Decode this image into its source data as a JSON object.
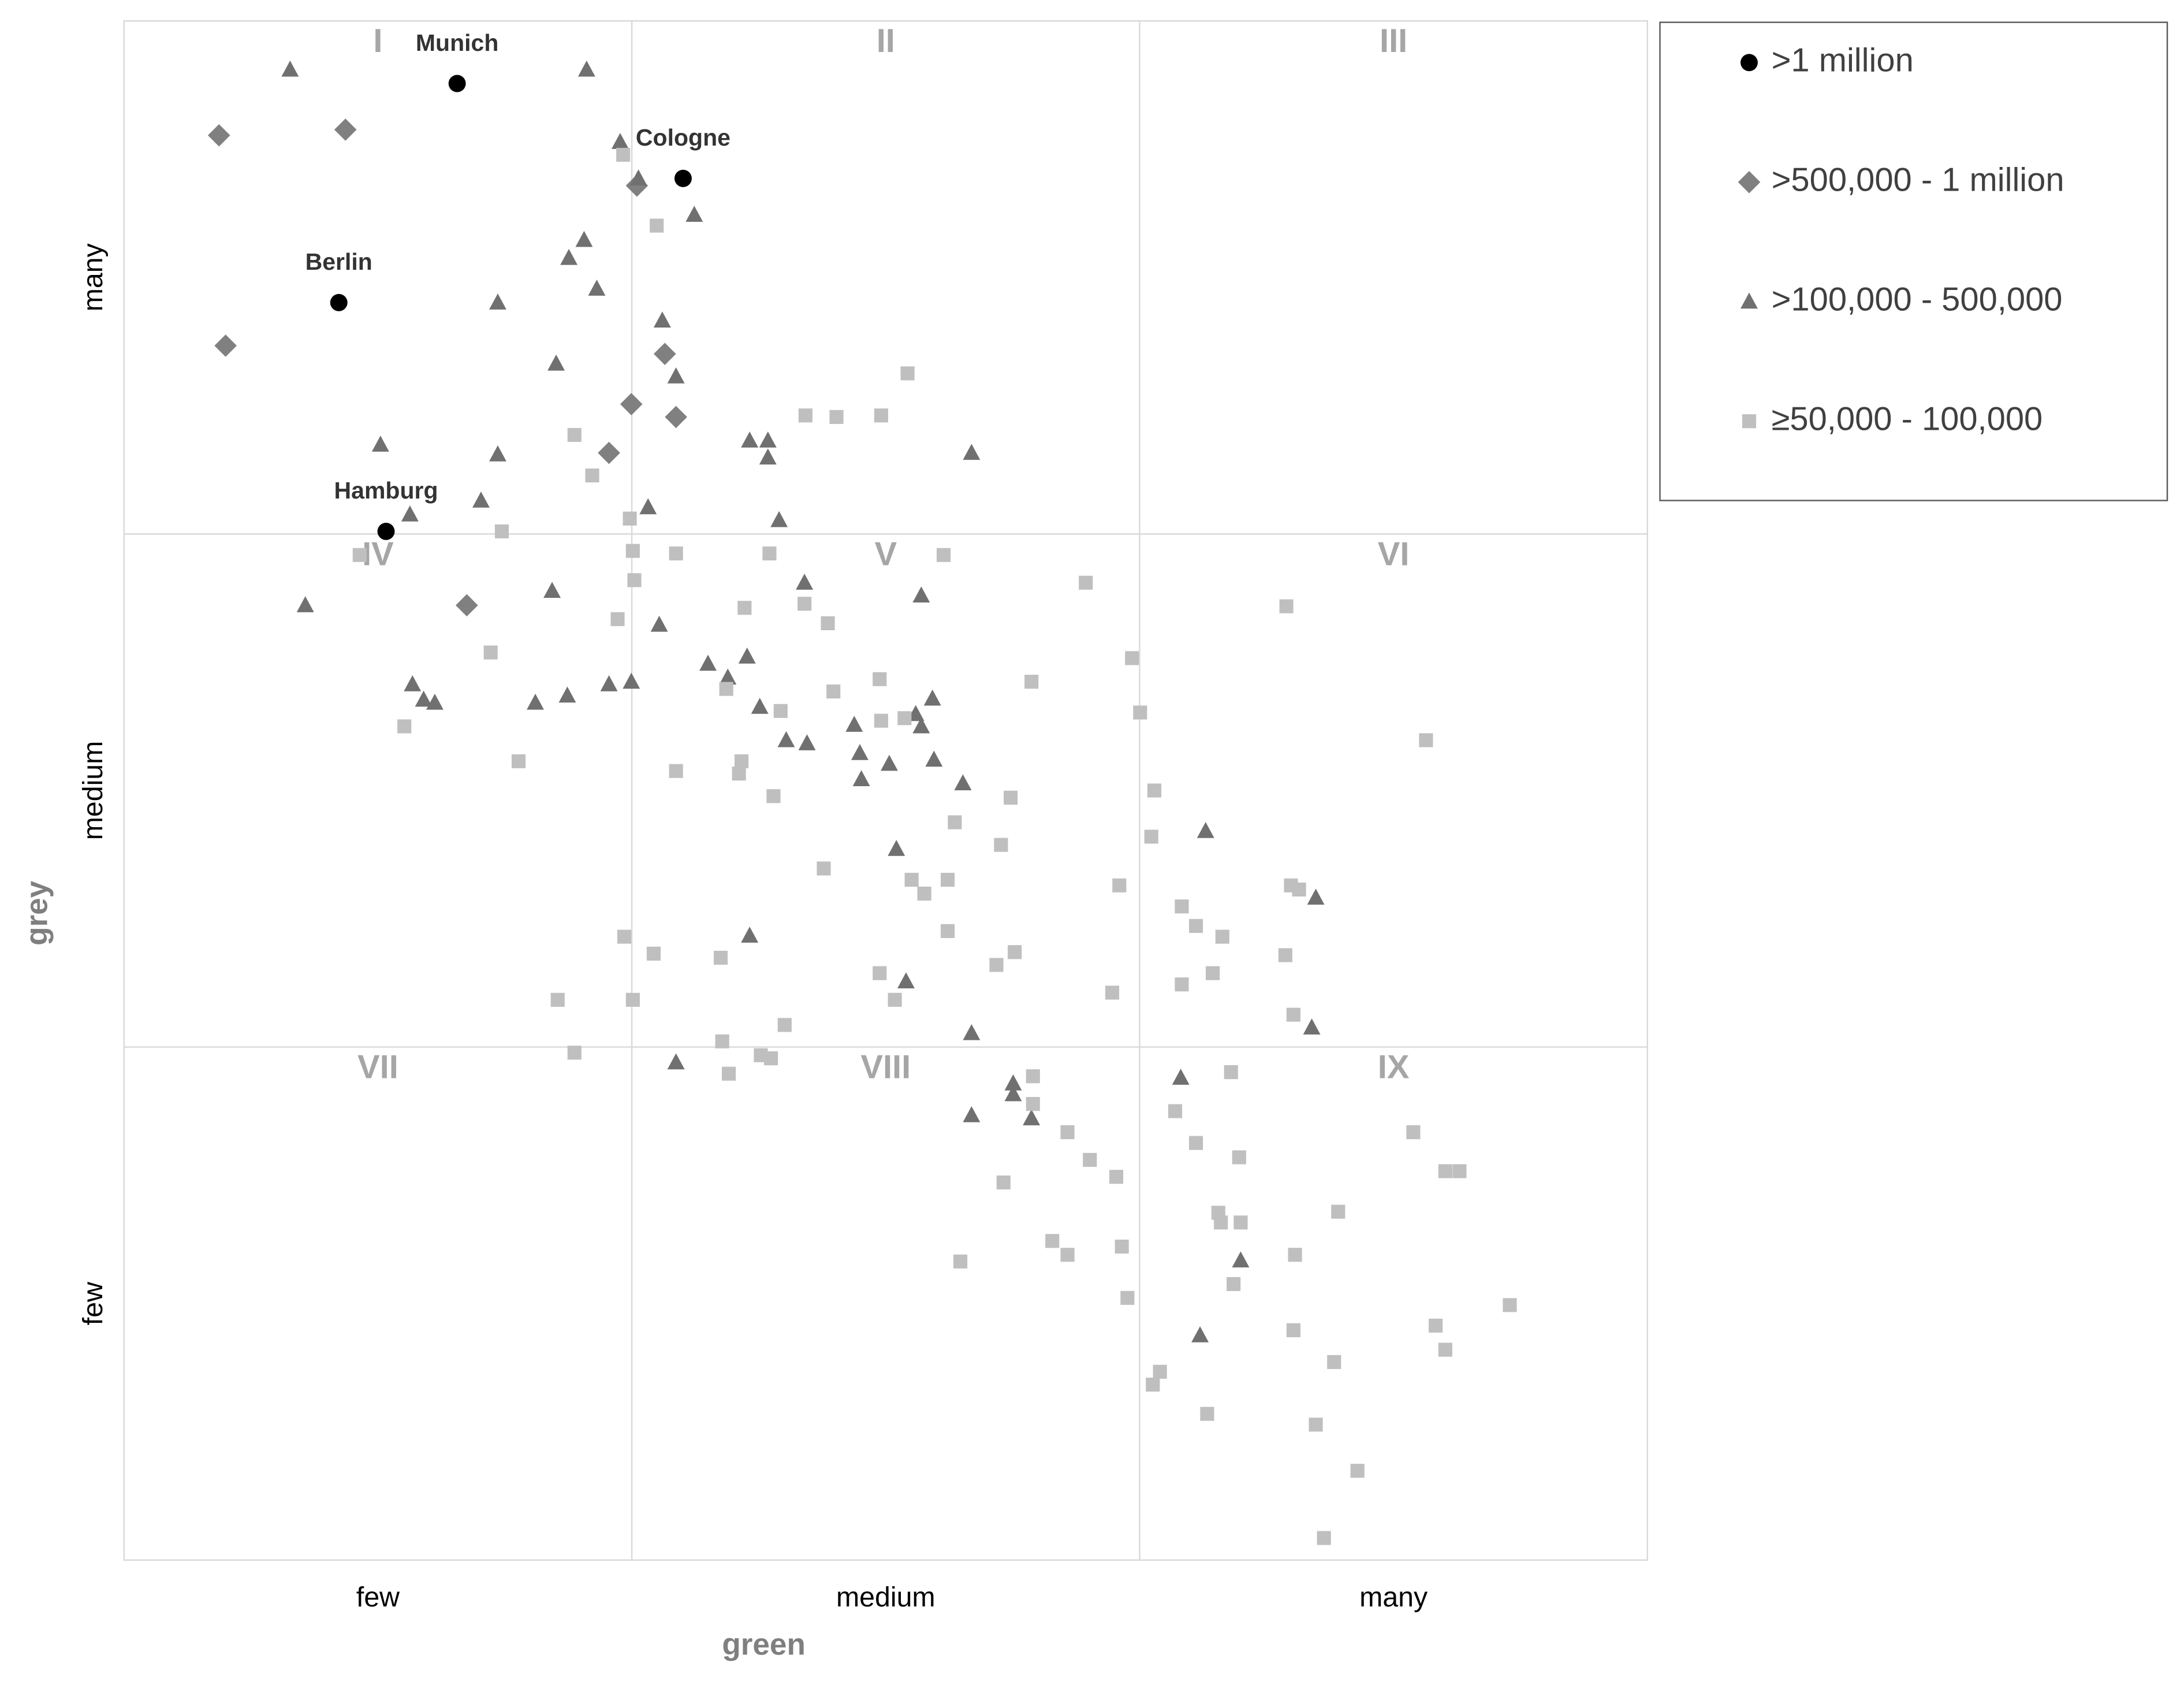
{
  "chart_data": {
    "type": "scatter",
    "x_label": "green",
    "y_label": "grey",
    "xlim": [
      0,
      3
    ],
    "ylim": [
      0,
      3
    ],
    "xticks": [
      {
        "value": 0.5,
        "label": "few"
      },
      {
        "value": 1.5,
        "label": "medium"
      },
      {
        "value": 2.5,
        "label": "many"
      }
    ],
    "yticks": [
      {
        "value": 0.5,
        "label": "few"
      },
      {
        "value": 1.5,
        "label": "medium"
      },
      {
        "value": 2.5,
        "label": "many"
      }
    ],
    "grid_lines": [
      1,
      2
    ],
    "regions": [
      "I",
      "II",
      "III",
      "IV",
      "V",
      "VI",
      "VII",
      "VIII",
      "IX"
    ],
    "legend": "top-right",
    "series": [
      {
        "name": ">1 million",
        "color": "#000000",
        "marker": "circle",
        "labels": [
          "Munich",
          "Cologne",
          "Berlin",
          "Hamburg"
        ],
        "x": [
          0.656,
          1.101,
          0.423,
          0.516
        ],
        "y": [
          2.878,
          2.693,
          2.451,
          2.005
        ]
      },
      {
        "name": ">500,000 - 1 million",
        "color": "#808080",
        "marker": "diamond",
        "x": [
          0.187,
          0.436,
          0.2,
          1.01,
          1.065,
          0.999,
          1.087,
          0.955,
          0.675
        ],
        "y": [
          2.777,
          2.788,
          2.367,
          2.679,
          2.351,
          2.253,
          2.228,
          2.158,
          1.861
        ]
      },
      {
        "name": ">100,000 - 500,000",
        "color": "#707070",
        "marker": "triangle",
        "x": [
          0.327,
          0.911,
          0.977,
          1.013,
          1.123,
          0.906,
          0.876,
          0.931,
          0.736,
          1.06,
          0.851,
          1.087,
          0.505,
          0.736,
          1.232,
          1.268,
          1.268,
          1.669,
          0.703,
          0.563,
          1.032,
          1.29,
          0.357,
          0.843,
          1.34,
          1.57,
          1.054,
          1.15,
          1.227,
          1.189,
          0.568,
          0.59,
          0.612,
          0.81,
          0.873,
          0.955,
          0.999,
          1.252,
          1.592,
          1.438,
          1.559,
          1.57,
          1.304,
          1.345,
          1.449,
          1.507,
          1.595,
          1.652,
          1.452,
          1.521,
          2.13,
          2.347,
          1.232,
          1.54,
          1.669,
          2.339,
          1.087,
          1.751,
          1.751,
          2.081,
          1.669,
          1.787,
          2.199,
          2.119
        ],
        "y": [
          2.905,
          2.905,
          2.764,
          2.693,
          2.622,
          2.573,
          2.538,
          2.478,
          2.451,
          2.416,
          2.332,
          2.307,
          2.174,
          2.155,
          2.182,
          2.182,
          2.149,
          2.158,
          2.065,
          2.038,
          2.052,
          2.027,
          1.861,
          1.889,
          1.905,
          1.88,
          1.823,
          1.747,
          1.761,
          1.72,
          1.707,
          1.677,
          1.671,
          1.671,
          1.685,
          1.707,
          1.712,
          1.663,
          1.679,
          1.628,
          1.649,
          1.625,
          1.598,
          1.592,
          1.573,
          1.552,
          1.56,
          1.514,
          1.522,
          1.386,
          1.421,
          1.291,
          1.217,
          1.128,
          1.027,
          1.038,
          0.97,
          0.929,
          0.908,
          0.94,
          0.867,
          0.861,
          0.584,
          0.438
        ]
      },
      {
        "name": "≥50,000 - 100,000",
        "color": "#bfbfbf",
        "marker": "square",
        "x": [
          0.983,
          1.049,
          1.543,
          1.342,
          1.403,
          1.491,
          0.887,
          0.922,
          0.744,
          0.996,
          0.464,
          1.002,
          1.087,
          1.271,
          1.614,
          1.005,
          1.894,
          1.222,
          1.34,
          0.972,
          1.386,
          2.289,
          0.722,
          1.985,
          1.186,
          1.397,
          1.488,
          1.787,
          1.293,
          1.491,
          1.537,
          2.001,
          0.552,
          2.564,
          0.777,
          1.087,
          1.216,
          1.211,
          1.279,
          1.746,
          2.029,
          1.636,
          2.023,
          1.727,
          1.378,
          1.551,
          1.622,
          1.576,
          1.96,
          2.298,
          2.314,
          2.083,
          2.111,
          2.163,
          0.985,
          1.043,
          1.175,
          1.622,
          1.754,
          1.718,
          1.488,
          2.144,
          2.287,
          0.854,
          1.002,
          1.518,
          1.946,
          2.083,
          2.303,
          1.301,
          1.178,
          0.887,
          1.254,
          1.274,
          1.191,
          1.79,
          2.18,
          1.79,
          2.07,
          1.858,
          2.111,
          1.902,
          2.196,
          2.539,
          1.732,
          1.954,
          2.602,
          2.63,
          2.155,
          2.391,
          2.16,
          2.199,
          1.828,
          1.858,
          1.965,
          1.647,
          2.306,
          2.185,
          1.976,
          2.729,
          2.583,
          2.303,
          2.602,
          2.383,
          2.04,
          2.026,
          2.133,
          2.347,
          2.429,
          2.363
        ],
        "y": [
          2.739,
          2.601,
          2.313,
          2.231,
          2.228,
          2.231,
          2.193,
          2.114,
          2.005,
          2.03,
          1.959,
          1.967,
          1.962,
          1.962,
          1.959,
          1.91,
          1.905,
          1.856,
          1.864,
          1.834,
          1.826,
          1.859,
          1.769,
          1.758,
          1.698,
          1.693,
          1.717,
          1.712,
          1.655,
          1.636,
          1.641,
          1.652,
          1.625,
          1.598,
          1.557,
          1.538,
          1.557,
          1.533,
          1.489,
          1.486,
          1.5,
          1.438,
          1.41,
          1.394,
          1.348,
          1.326,
          1.326,
          1.299,
          1.315,
          1.315,
          1.307,
          1.274,
          1.236,
          1.215,
          1.215,
          1.182,
          1.174,
          1.226,
          1.185,
          1.16,
          1.144,
          1.144,
          1.179,
          1.092,
          1.092,
          1.092,
          1.106,
          1.122,
          1.063,
          1.043,
          1.011,
          0.989,
          0.984,
          0.978,
          0.948,
          0.943,
          0.951,
          0.889,
          0.875,
          0.834,
          0.813,
          0.78,
          0.785,
          0.834,
          0.736,
          0.747,
          0.758,
          0.758,
          0.677,
          0.679,
          0.658,
          0.658,
          0.622,
          0.595,
          0.611,
          0.582,
          0.595,
          0.538,
          0.511,
          0.497,
          0.457,
          0.448,
          0.41,
          0.386,
          0.367,
          0.342,
          0.285,
          0.264,
          0.174,
          0.043
        ]
      }
    ]
  }
}
